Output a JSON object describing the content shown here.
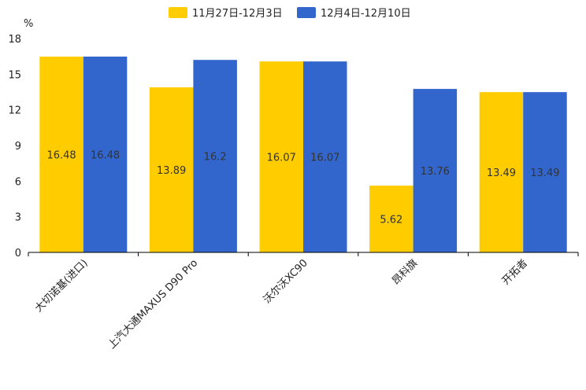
{
  "chart_data": {
    "type": "bar",
    "title": "",
    "xlabel": "",
    "ylabel": "%",
    "ylim": [
      0,
      18
    ],
    "yticks": [
      0,
      3,
      6,
      9,
      12,
      15,
      18
    ],
    "grid": false,
    "legend_position": "top-center",
    "categories": [
      "大切诺基(进口)",
      "上汽大通MAXUS D90 Pro",
      "沃尔沃XC90",
      "昂科旗",
      "开拓者"
    ],
    "series": [
      {
        "name": "11月27日-12月3日",
        "color": "#FFCC00",
        "values": [
          16.48,
          13.89,
          16.07,
          5.62,
          13.49
        ],
        "labels": [
          "16.48",
          "13.89",
          "16.07",
          "5.62",
          "13.49"
        ]
      },
      {
        "name": "12月4日-12月10日",
        "color": "#3366CC",
        "values": [
          16.48,
          16.2,
          16.07,
          13.76,
          13.49
        ],
        "labels": [
          "16.48",
          "16.2",
          "16.07",
          "13.76",
          "13.49"
        ]
      }
    ]
  }
}
